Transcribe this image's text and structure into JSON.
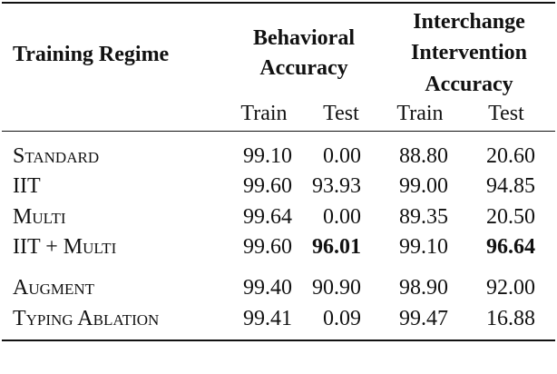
{
  "table": {
    "header": {
      "first": "Training Regime",
      "groups": [
        {
          "lines": [
            "Behavioral",
            "Accuracy"
          ],
          "sub": [
            "Train",
            "Test"
          ]
        },
        {
          "lines": [
            "Interchange",
            "Intervention",
            "Accuracy"
          ],
          "sub": [
            "Train",
            "Test"
          ]
        }
      ]
    },
    "rows": [
      {
        "label": "Standard",
        "cells": [
          {
            "text": "99.10"
          },
          {
            "text": "0.00"
          },
          {
            "text": "88.80"
          },
          {
            "text": "20.60"
          }
        ]
      },
      {
        "label": "IIT",
        "cells": [
          {
            "text": "99.60"
          },
          {
            "text": "93.93"
          },
          {
            "text": "99.00"
          },
          {
            "text": "94.85"
          }
        ]
      },
      {
        "label": "Multi",
        "cells": [
          {
            "text": "99.64"
          },
          {
            "text": "0.00"
          },
          {
            "text": "89.35"
          },
          {
            "text": "20.50"
          }
        ]
      },
      {
        "label": "IIT + Multi",
        "cells": [
          {
            "text": "99.60"
          },
          {
            "text": "96.01",
            "bold": true
          },
          {
            "text": "99.10"
          },
          {
            "text": "96.64",
            "bold": true
          }
        ]
      },
      {
        "label": "Augment",
        "cells": [
          {
            "text": "99.40"
          },
          {
            "text": "90.90"
          },
          {
            "text": "98.90"
          },
          {
            "text": "92.00"
          }
        ]
      },
      {
        "label": "Typing Ablation",
        "cells": [
          {
            "text": "99.41"
          },
          {
            "text": "0.09"
          },
          {
            "text": "99.47"
          },
          {
            "text": "16.88"
          }
        ]
      }
    ]
  }
}
